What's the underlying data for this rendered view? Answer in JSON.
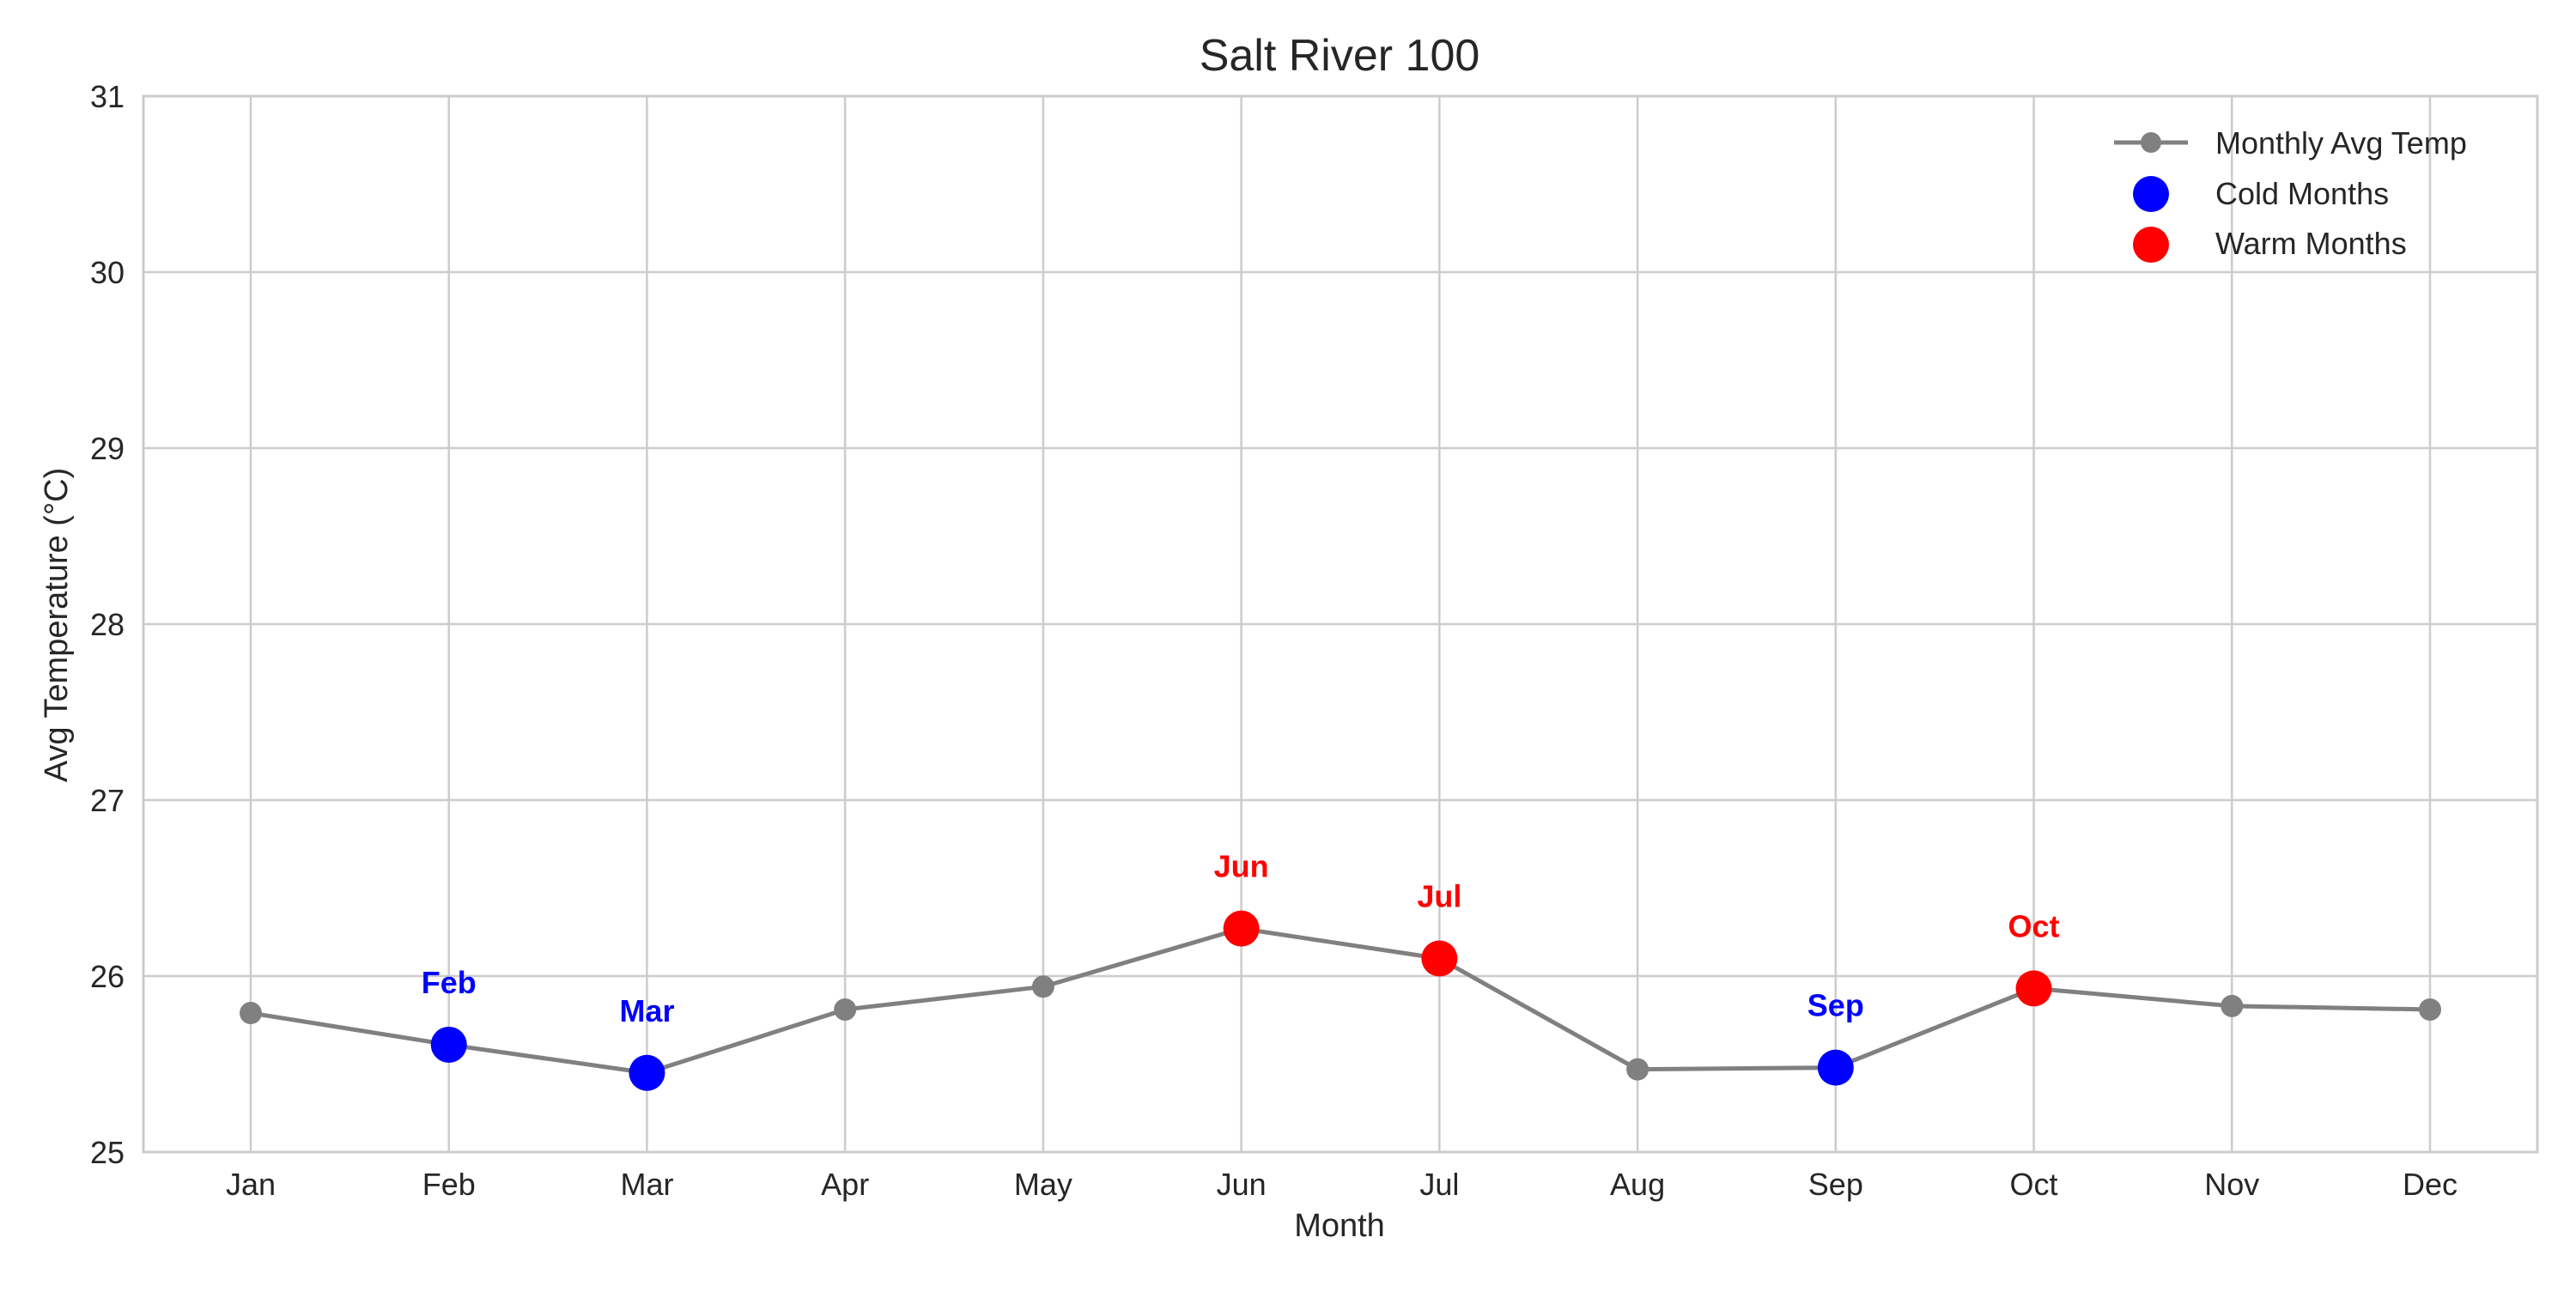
{
  "chart_data": {
    "type": "line",
    "title": "Salt River 100",
    "xlabel": "Month",
    "ylabel": "Avg Temperature (°C)",
    "categories": [
      "Jan",
      "Feb",
      "Mar",
      "Apr",
      "May",
      "Jun",
      "Jul",
      "Aug",
      "Sep",
      "Oct",
      "Nov",
      "Dec"
    ],
    "ylim": [
      25,
      31
    ],
    "yticks": [
      25,
      26,
      27,
      28,
      29,
      30,
      31
    ],
    "grid": true,
    "legend_position": "top-right",
    "series": [
      {
        "name": "Monthly Avg Temp",
        "color": "#808080",
        "values": [
          25.79,
          25.61,
          25.45,
          25.81,
          25.94,
          26.27,
          26.1,
          25.47,
          25.48,
          25.93,
          25.83,
          25.81
        ]
      }
    ],
    "highlights": [
      {
        "name": "Cold Months",
        "color": "#0000ff",
        "months": [
          "Feb",
          "Mar",
          "Sep"
        ]
      },
      {
        "name": "Warm Months",
        "color": "#ff0000",
        "months": [
          "Jun",
          "Jul",
          "Oct"
        ]
      }
    ]
  }
}
